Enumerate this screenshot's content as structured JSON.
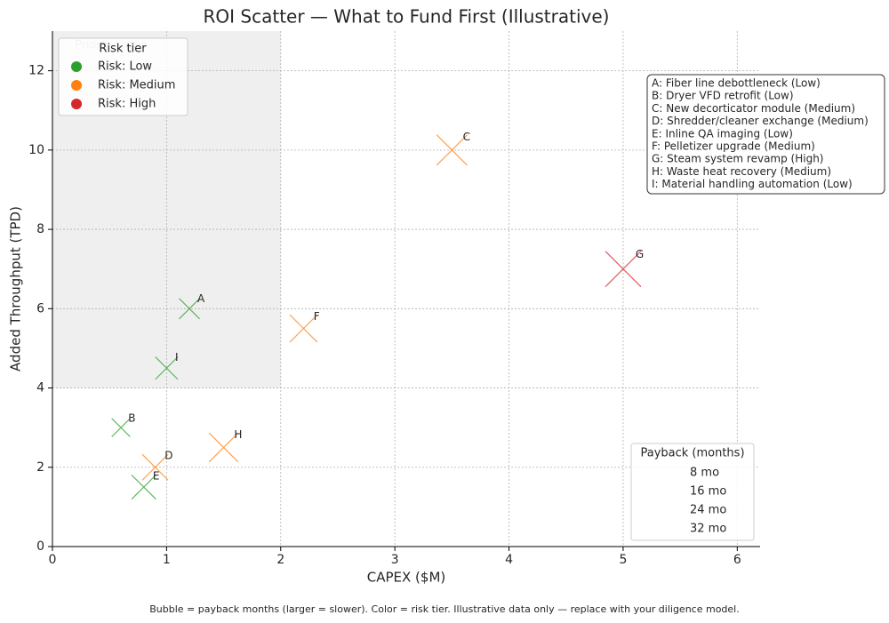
{
  "chart_data": {
    "type": "scatter",
    "title": "ROI Scatter — What to Fund First (Illustrative)",
    "x_label": "CAPEX ($M)",
    "y_label": "Added Throughput (TPD)",
    "xlim": [
      0,
      6.2
    ],
    "ylim": [
      0,
      13
    ],
    "xticks": [
      0,
      1,
      2,
      3,
      4,
      5,
      6
    ],
    "yticks": [
      0,
      2,
      4,
      6,
      8,
      10,
      12
    ],
    "grid": true,
    "legend_title": "Risk tier",
    "legend_position": "upper left",
    "zone": {
      "label": "Priority zone",
      "xrange": [
        0,
        2
      ],
      "yrange": [
        4,
        13
      ]
    },
    "series": [
      {
        "name": "Risk: Low",
        "color": "#2ca02c",
        "point_labels": [
          "A",
          "B",
          "E",
          "I"
        ],
        "x": [
          1.2,
          0.6,
          0.8,
          1.0
        ],
        "values": [
          6.0,
          3.0,
          1.5,
          4.5
        ],
        "sizes": [
          10,
          8,
          14,
          12
        ]
      },
      {
        "name": "Risk: Medium",
        "color": "#ff7f0e",
        "point_labels": [
          "C",
          "D",
          "F",
          "H"
        ],
        "x": [
          3.5,
          0.9,
          2.2,
          1.5
        ],
        "values": [
          10.0,
          2.0,
          5.5,
          2.5
        ],
        "sizes": [
          22,
          16,
          18,
          20
        ]
      },
      {
        "name": "Risk: High",
        "color": "#d62728",
        "point_labels": [
          "G"
        ],
        "x": [
          5.0
        ],
        "values": [
          7.0
        ],
        "sizes": [
          30
        ]
      }
    ],
    "size_legend": {
      "title": "Payback (months)",
      "labels": [
        "8 mo",
        "16 mo",
        "24 mo",
        "32 mo"
      ]
    },
    "key_box": {
      "lines": [
        "A: Fiber line debottleneck (Low)",
        "B: Dryer VFD retrofit (Low)",
        "C: New decorticator module (Medium)",
        "D: Shredder/cleaner exchange (Medium)",
        "E: Inline QA imaging (Low)",
        "F: Pelletizer upgrade (Medium)",
        "G: Steam system revamp (High)",
        "H: Waste heat recovery (Medium)",
        "I: Material handling automation (Low)"
      ]
    },
    "footnote": "Bubble = payback months (larger = slower). Color = risk tier. Illustrative data only — replace with your diligence model."
  }
}
